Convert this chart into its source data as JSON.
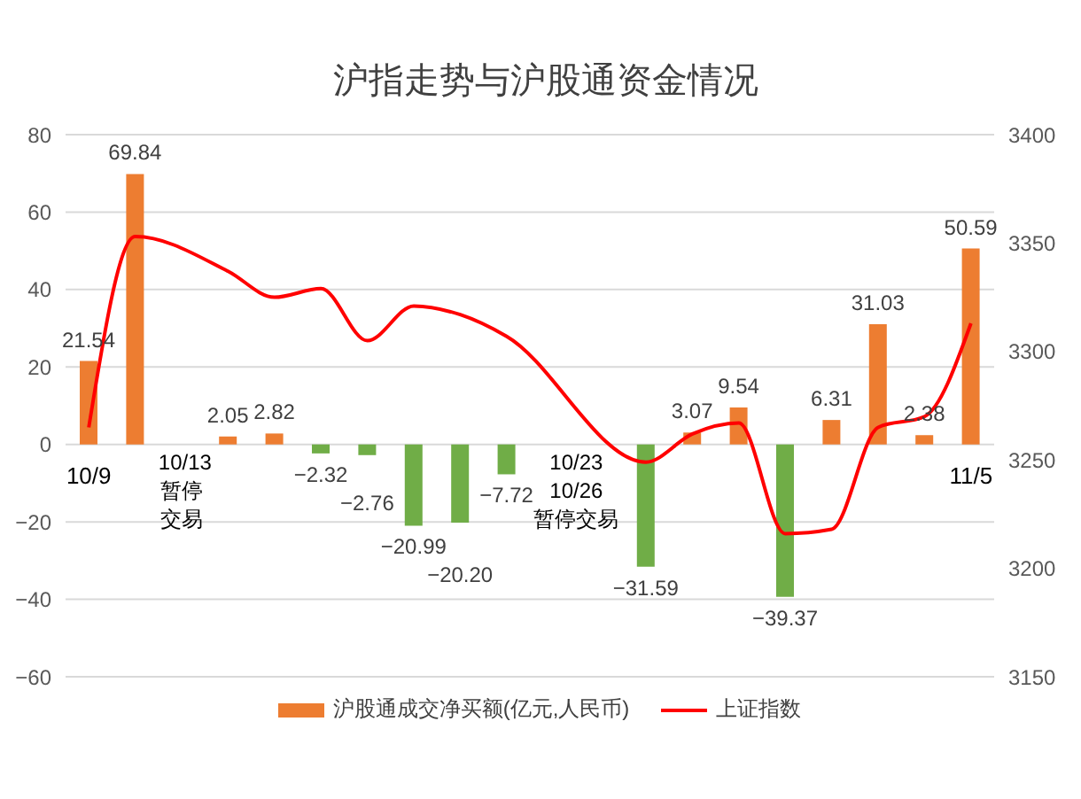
{
  "chart_data": {
    "type": "bar",
    "title": "沪指走势与沪股通资金情况",
    "categories": [
      "10/9",
      null,
      null,
      null,
      null,
      null,
      null,
      null,
      null,
      null,
      null,
      null,
      null,
      null,
      null,
      null,
      null,
      null,
      null,
      "11/5"
    ],
    "series": [
      {
        "name": "沪股通成交净买额(亿元,人民币)",
        "color": "#ed7d31",
        "colors": [
          "#ed7d31",
          "#ed7d31",
          null,
          "#ed7d31",
          "#ed7d31",
          "#70ad47",
          "#70ad47",
          "#70ad47",
          "#70ad47",
          "#70ad47",
          null,
          null,
          "#70ad47",
          "#ed7d31",
          "#ed7d31",
          "#70ad47",
          "#ed7d31",
          "#ed7d31",
          "#ed7d31",
          "#ed7d31"
        ],
        "values": [
          21.54,
          69.84,
          null,
          2.05,
          2.82,
          -2.32,
          -2.76,
          -20.99,
          -20.2,
          -7.72,
          null,
          null,
          -31.59,
          3.07,
          9.54,
          -39.37,
          6.31,
          31.03,
          2.38,
          50.59
        ],
        "value_labels": [
          "21.54",
          "69.84",
          null,
          "2.05",
          "2.82",
          "−2.32",
          "−2.76",
          "−20.99",
          "−20.20",
          "−7.72",
          null,
          null,
          "−31.59",
          "3.07",
          "9.54",
          "−39.37",
          "6.31",
          "31.03",
          "2.38",
          "50.59"
        ]
      },
      {
        "name": "上证指数",
        "type": "line",
        "axis": "y2",
        "color": "#ff0000",
        "values": [
          3265,
          3353,
          null,
          3337,
          3325,
          3329,
          3305,
          3321,
          3317,
          3307,
          null,
          null,
          3249,
          3262,
          3267,
          3216,
          3218,
          3265,
          3270,
          3313
        ]
      }
    ],
    "ylim": [
      -60,
      80
    ],
    "yticks": [
      -60,
      -40,
      -20,
      0,
      20,
      40,
      60,
      80
    ],
    "y2lim": [
      3150,
      3400
    ],
    "y2ticks": [
      3150,
      3200,
      3250,
      3300,
      3350,
      3400
    ],
    "grid": "y",
    "legend": "bottom",
    "marker": "none",
    "annotations": [
      "10/13\n暂停交易",
      "10/23\n10/26\n暂停交易"
    ]
  }
}
